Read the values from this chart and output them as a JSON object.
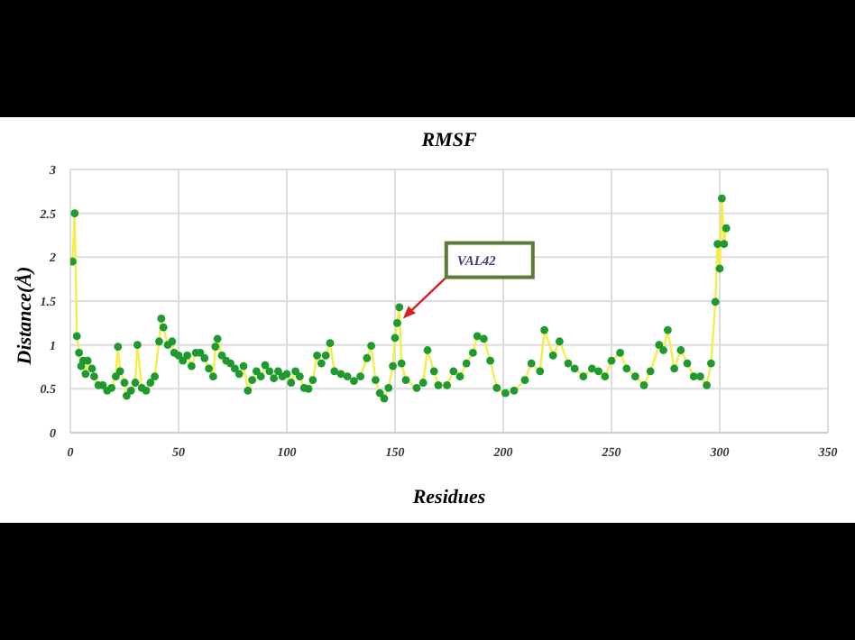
{
  "chart_data": {
    "type": "line",
    "title": "RMSF",
    "xlabel": "Residues",
    "ylabel": "Distance(Å)",
    "annotations": [
      {
        "text": "VAL42",
        "x": 152,
        "y": 1.43
      }
    ],
    "x": [
      1,
      2,
      3,
      4,
      5,
      6,
      7,
      8,
      10,
      11,
      13,
      15,
      17,
      19,
      21,
      22,
      23,
      25,
      26,
      28,
      30,
      31,
      33,
      35,
      37,
      39,
      41,
      42,
      43,
      45,
      47,
      48,
      50,
      52,
      54,
      56,
      58,
      60,
      62,
      64,
      66,
      67,
      68,
      70,
      72,
      74,
      76,
      78,
      80,
      82,
      84,
      86,
      88,
      90,
      92,
      94,
      96,
      98,
      100,
      102,
      104,
      106,
      108,
      110,
      112,
      114,
      116,
      118,
      120,
      122,
      125,
      128,
      131,
      134,
      137,
      139,
      141,
      143,
      145,
      147,
      149,
      150,
      151,
      152,
      153,
      155,
      160,
      163,
      165,
      168,
      170,
      174,
      177,
      180,
      183,
      186,
      188,
      191,
      194,
      197,
      201,
      205,
      210,
      213,
      217,
      219,
      223,
      226,
      230,
      233,
      237,
      241,
      244,
      247,
      250,
      254,
      257,
      261,
      265,
      268,
      272,
      274,
      276,
      279,
      282,
      285,
      288,
      291,
      294,
      296,
      298,
      299,
      300,
      301,
      302,
      303
    ],
    "series": [
      {
        "color": "#f3ee4a",
        "marker": "none",
        "values": [
          1.95,
          2.5,
          1.1,
          0.91,
          0.76,
          0.82,
          0.67,
          0.82,
          0.73,
          0.64,
          0.54,
          0.54,
          0.48,
          0.51,
          0.64,
          0.98,
          0.7,
          0.57,
          0.42,
          0.48,
          0.57,
          1.0,
          0.51,
          0.48,
          0.57,
          0.64,
          1.04,
          1.3,
          1.2,
          1.0,
          1.04,
          0.91,
          0.88,
          0.82,
          0.88,
          0.76,
          0.91,
          0.91,
          0.85,
          0.73,
          0.64,
          0.98,
          1.07,
          0.88,
          0.82,
          0.79,
          0.73,
          0.67,
          0.76,
          0.48,
          0.6,
          0.7,
          0.64,
          0.77,
          0.7,
          0.62,
          0.7,
          0.64,
          0.67,
          0.57,
          0.7,
          0.64,
          0.51,
          0.5,
          0.6,
          0.88,
          0.79,
          0.88,
          1.02,
          0.7,
          0.67,
          0.64,
          0.59,
          0.64,
          0.85,
          0.99,
          0.6,
          0.45,
          0.39,
          0.51,
          0.76,
          1.08,
          1.25,
          1.43,
          0.79,
          0.6,
          0.51,
          0.57,
          0.94,
          0.7,
          0.54,
          0.54,
          0.7,
          0.64,
          0.79,
          0.91,
          1.1,
          1.07,
          0.82,
          0.51,
          0.45,
          0.48,
          0.6,
          0.79,
          0.7,
          1.17,
          0.88,
          1.04,
          0.79,
          0.73,
          0.64,
          0.73,
          0.7,
          0.64,
          0.82,
          0.91,
          0.73,
          0.64,
          0.54,
          0.7,
          1.0,
          0.94,
          1.17,
          0.73,
          0.94,
          0.79,
          0.64,
          0.64,
          0.54,
          0.79,
          1.49,
          2.15,
          1.87,
          2.67,
          2.15,
          2.33
        ]
      },
      {
        "type": "scatter",
        "color": "#1f9a2e",
        "marker": "circle",
        "values": [
          1.95,
          2.5,
          1.1,
          0.91,
          0.76,
          0.82,
          0.67,
          0.82,
          0.73,
          0.64,
          0.54,
          0.54,
          0.48,
          0.51,
          0.64,
          0.98,
          0.7,
          0.57,
          0.42,
          0.48,
          0.57,
          1.0,
          0.51,
          0.48,
          0.57,
          0.64,
          1.04,
          1.3,
          1.2,
          1.0,
          1.04,
          0.91,
          0.88,
          0.82,
          0.88,
          0.76,
          0.91,
          0.91,
          0.85,
          0.73,
          0.64,
          0.98,
          1.07,
          0.88,
          0.82,
          0.79,
          0.73,
          0.67,
          0.76,
          0.48,
          0.6,
          0.7,
          0.64,
          0.77,
          0.7,
          0.62,
          0.7,
          0.64,
          0.67,
          0.57,
          0.7,
          0.64,
          0.51,
          0.5,
          0.6,
          0.88,
          0.79,
          0.88,
          1.02,
          0.7,
          0.67,
          0.64,
          0.59,
          0.64,
          0.85,
          0.99,
          0.6,
          0.45,
          0.39,
          0.51,
          0.76,
          1.08,
          1.25,
          1.43,
          0.79,
          0.6,
          0.51,
          0.57,
          0.94,
          0.7,
          0.54,
          0.54,
          0.7,
          0.64,
          0.79,
          0.91,
          1.1,
          1.07,
          0.82,
          0.51,
          0.45,
          0.48,
          0.6,
          0.79,
          0.7,
          1.17,
          0.88,
          1.04,
          0.79,
          0.73,
          0.64,
          0.73,
          0.7,
          0.64,
          0.82,
          0.91,
          0.73,
          0.64,
          0.54,
          0.7,
          1.0,
          0.94,
          1.17,
          0.73,
          0.94,
          0.79,
          0.64,
          0.64,
          0.54,
          0.79,
          1.49,
          2.15,
          1.87,
          2.67,
          2.15,
          2.33
        ]
      }
    ],
    "xlim": [
      0,
      350
    ],
    "xticks": [
      0,
      50,
      100,
      150,
      200,
      250,
      300,
      350
    ],
    "ylim": [
      0,
      3
    ],
    "yticks": [
      0,
      0.5,
      1,
      1.5,
      2,
      2.5,
      3
    ],
    "grid": true
  }
}
